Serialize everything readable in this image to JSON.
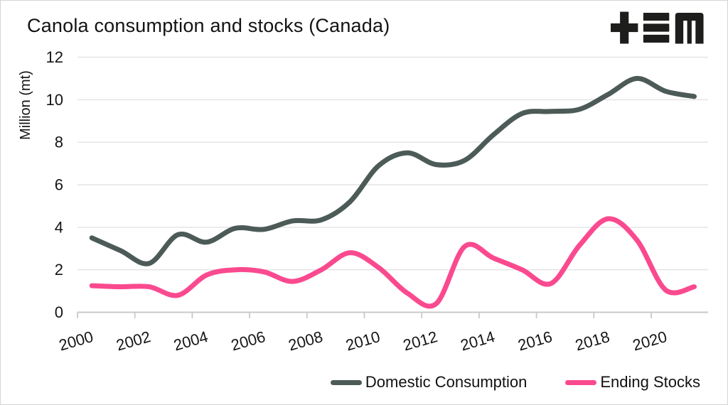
{
  "header": {
    "title": "Canola consumption and stocks (Canada)",
    "logo": "tem-logo"
  },
  "chart_data": {
    "type": "line",
    "title": "Canola consumption and stocks (Canada)",
    "xlabel": "",
    "ylabel": "Million (mt)",
    "ylim": [
      0,
      12
    ],
    "yticks": [
      0,
      2,
      4,
      6,
      8,
      10,
      12
    ],
    "xticks": [
      2000,
      2002,
      2004,
      2006,
      2008,
      2010,
      2012,
      2014,
      2016,
      2018,
      2020
    ],
    "x": [
      2000,
      2001,
      2002,
      2003,
      2004,
      2005,
      2006,
      2007,
      2008,
      2009,
      2010,
      2011,
      2012,
      2013,
      2014,
      2015,
      2016,
      2017,
      2018,
      2019,
      2020,
      2021
    ],
    "series": [
      {
        "name": "Domestic Consumption",
        "color": "#4c5b58",
        "values": [
          3.5,
          2.9,
          2.3,
          3.65,
          3.3,
          3.95,
          3.9,
          4.3,
          4.35,
          5.2,
          6.9,
          7.5,
          6.95,
          7.15,
          8.35,
          9.35,
          9.45,
          9.55,
          10.25,
          11.0,
          10.4,
          10.15
        ]
      },
      {
        "name": "Ending Stocks",
        "color": "#fa4a8f",
        "values": [
          1.25,
          1.2,
          1.2,
          0.8,
          1.75,
          2.0,
          1.9,
          1.45,
          2.0,
          2.8,
          2.1,
          0.9,
          0.4,
          3.1,
          2.55,
          2.0,
          1.35,
          3.15,
          4.4,
          3.4,
          1.05,
          1.2
        ]
      }
    ],
    "grid": "horizontal",
    "legend_position": "bottom-right",
    "colors": {
      "grid_line": "#e4e4e4",
      "axis_line": "#c9c9c9",
      "text": "#151515",
      "logo": "#1d1d1b"
    }
  }
}
